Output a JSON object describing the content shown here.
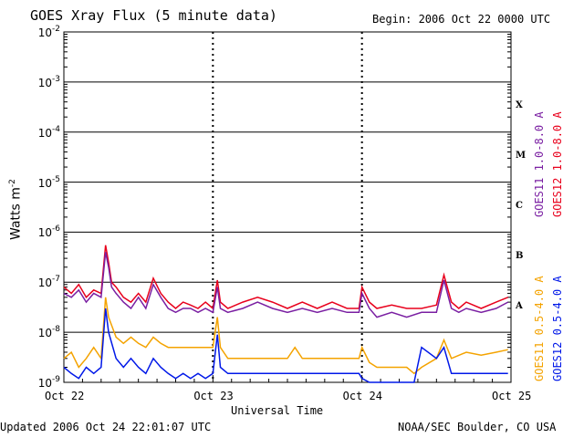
{
  "header": {
    "title": "GOES Xray Flux (5 minute data)",
    "begin": "Begin:  2006 Oct 22 0000 UTC"
  },
  "footer": {
    "updated": "Updated 2006 Oct 24 22:01:07 UTC",
    "credit": "NOAA/SEC Boulder, CO USA"
  },
  "chart_data": {
    "type": "line",
    "title": "GOES Xray Flux (5 minute data)",
    "xlabel": "Universal Time",
    "ylabel": "Watts m-2",
    "ylabel_main": "Watts m",
    "ylabel_sup": "-2",
    "y_scale": "log",
    "ylim": [
      1e-09,
      0.01
    ],
    "x_range_days": [
      "Oct 22",
      "Oct 25"
    ],
    "x_ticks": [
      "Oct 22",
      "Oct 23",
      "Oct 24",
      "Oct 25"
    ],
    "y_ticks": [
      {
        "base": "10",
        "exp": "-2"
      },
      {
        "base": "10",
        "exp": "-3"
      },
      {
        "base": "10",
        "exp": "-4"
      },
      {
        "base": "10",
        "exp": "-5"
      },
      {
        "base": "10",
        "exp": "-6"
      },
      {
        "base": "10",
        "exp": "-7"
      },
      {
        "base": "10",
        "exp": "-8"
      },
      {
        "base": "10",
        "exp": "-9"
      }
    ],
    "flare_classes": [
      "X",
      "M",
      "C",
      "B",
      "A"
    ],
    "grid": true,
    "legend_right": [
      {
        "name": "GOES11 1.0-8.0 A",
        "color": "#7a1fa2"
      },
      {
        "name": "GOES12 1.0-8.0 A",
        "color": "#e8001c"
      },
      {
        "name": "GOES11 0.5-4.0 A",
        "color": "#f4a300"
      },
      {
        "name": "GOES12 0.5-4.0 A",
        "color": "#0018e8"
      }
    ],
    "series": [
      {
        "name": "GOES12 1.0-8.0 A",
        "color": "#e8001c",
        "x": [
          0,
          0.05,
          0.1,
          0.15,
          0.2,
          0.25,
          0.28,
          0.3,
          0.32,
          0.35,
          0.4,
          0.45,
          0.5,
          0.55,
          0.6,
          0.65,
          0.7,
          0.75,
          0.8,
          0.85,
          0.9,
          0.95,
          1.0,
          1.03,
          1.05,
          1.1,
          1.2,
          1.3,
          1.4,
          1.5,
          1.6,
          1.7,
          1.8,
          1.9,
          1.98,
          2.0,
          2.05,
          2.1,
          2.2,
          2.3,
          2.4,
          2.5,
          2.55,
          2.6,
          2.65,
          2.7,
          2.8,
          2.9,
          2.98
        ],
        "values": [
          8e-08,
          6e-08,
          9e-08,
          5e-08,
          7e-08,
          6e-08,
          5.5e-07,
          2.5e-07,
          1e-07,
          8e-08,
          5e-08,
          4e-08,
          6e-08,
          4e-08,
          1.2e-07,
          6e-08,
          4e-08,
          3e-08,
          4e-08,
          3.5e-08,
          3e-08,
          4e-08,
          3e-08,
          1.1e-07,
          4e-08,
          3e-08,
          4e-08,
          5e-08,
          4e-08,
          3e-08,
          4e-08,
          3e-08,
          4e-08,
          3e-08,
          3e-08,
          8e-08,
          4e-08,
          3e-08,
          3.5e-08,
          3e-08,
          3e-08,
          3.5e-08,
          1.4e-07,
          4e-08,
          3e-08,
          4e-08,
          3e-08,
          4e-08,
          5e-08
        ]
      },
      {
        "name": "GOES11 1.0-8.0 A",
        "color": "#7a1fa2",
        "x": [
          0,
          0.05,
          0.1,
          0.15,
          0.2,
          0.25,
          0.28,
          0.3,
          0.32,
          0.35,
          0.4,
          0.45,
          0.5,
          0.55,
          0.6,
          0.65,
          0.7,
          0.75,
          0.8,
          0.85,
          0.9,
          0.95,
          1.0,
          1.03,
          1.05,
          1.1,
          1.2,
          1.3,
          1.4,
          1.5,
          1.6,
          1.7,
          1.8,
          1.9,
          1.98,
          2.0,
          2.05,
          2.1,
          2.2,
          2.3,
          2.4,
          2.5,
          2.55,
          2.6,
          2.65,
          2.7,
          2.8,
          2.9,
          2.98
        ],
        "values": [
          6e-08,
          5e-08,
          7e-08,
          4e-08,
          6e-08,
          5e-08,
          4e-07,
          2e-07,
          8e-08,
          6e-08,
          4e-08,
          3e-08,
          5e-08,
          3e-08,
          9e-08,
          5e-08,
          3e-08,
          2.5e-08,
          3e-08,
          3e-08,
          2.5e-08,
          3e-08,
          2.5e-08,
          8e-08,
          3e-08,
          2.5e-08,
          3e-08,
          4e-08,
          3e-08,
          2.5e-08,
          3e-08,
          2.5e-08,
          3e-08,
          2.5e-08,
          2.5e-08,
          6e-08,
          3e-08,
          2e-08,
          2.5e-08,
          2e-08,
          2.5e-08,
          2.5e-08,
          1.1e-07,
          3e-08,
          2.5e-08,
          3e-08,
          2.5e-08,
          3e-08,
          4e-08
        ]
      },
      {
        "name": "GOES11 0.5-4.0 A",
        "color": "#f4a300",
        "x": [
          0,
          0.05,
          0.1,
          0.15,
          0.2,
          0.25,
          0.28,
          0.3,
          0.35,
          0.4,
          0.45,
          0.5,
          0.55,
          0.6,
          0.65,
          0.7,
          0.75,
          0.8,
          0.85,
          0.9,
          0.95,
          1.0,
          1.03,
          1.05,
          1.1,
          1.2,
          1.3,
          1.4,
          1.5,
          1.55,
          1.6,
          1.7,
          1.8,
          1.9,
          1.98,
          2.0,
          2.05,
          2.1,
          2.2,
          2.3,
          2.35,
          2.4,
          2.5,
          2.55,
          2.6,
          2.7,
          2.8,
          2.9,
          2.98
        ],
        "values": [
          3e-09,
          4e-09,
          2e-09,
          3e-09,
          5e-09,
          3e-09,
          5e-08,
          2e-08,
          8e-09,
          6e-09,
          8e-09,
          6e-09,
          5e-09,
          8e-09,
          6e-09,
          5e-09,
          5e-09,
          5e-09,
          5e-09,
          5e-09,
          5e-09,
          5e-09,
          2e-08,
          5e-09,
          3e-09,
          3e-09,
          3e-09,
          3e-09,
          3e-09,
          5e-09,
          3e-09,
          3e-09,
          3e-09,
          3e-09,
          3e-09,
          5e-09,
          2.5e-09,
          2e-09,
          2e-09,
          2e-09,
          1.5e-09,
          2e-09,
          3e-09,
          7e-09,
          3e-09,
          4e-09,
          3.5e-09,
          4e-09,
          4.5e-09
        ]
      },
      {
        "name": "GOES12 0.5-4.0 A",
        "color": "#0018e8",
        "x": [
          0,
          0.05,
          0.1,
          0.15,
          0.2,
          0.25,
          0.28,
          0.3,
          0.35,
          0.4,
          0.45,
          0.5,
          0.55,
          0.6,
          0.65,
          0.7,
          0.75,
          0.8,
          0.85,
          0.9,
          0.95,
          1.0,
          1.03,
          1.05,
          1.1,
          1.2,
          1.3,
          1.4,
          1.5,
          1.6,
          1.7,
          1.8,
          1.9,
          1.98,
          2.0,
          2.05,
          2.1,
          2.2,
          2.3,
          2.35,
          2.4,
          2.5,
          2.55,
          2.6,
          2.7,
          2.8,
          2.9,
          2.98
        ],
        "values": [
          2e-09,
          1.5e-09,
          1.2e-09,
          2e-09,
          1.5e-09,
          2e-09,
          3e-08,
          1e-08,
          3e-09,
          2e-09,
          3e-09,
          2e-09,
          1.5e-09,
          3e-09,
          2e-09,
          1.5e-09,
          1.2e-09,
          1.5e-09,
          1.2e-09,
          1.5e-09,
          1.2e-09,
          1.5e-09,
          9e-09,
          2e-09,
          1.5e-09,
          1.5e-09,
          1.5e-09,
          1.5e-09,
          1.5e-09,
          1.5e-09,
          1.5e-09,
          1.5e-09,
          1.5e-09,
          1.5e-09,
          1.2e-09,
          1e-09,
          1e-09,
          1e-09,
          1e-09,
          1e-09,
          5e-09,
          3e-09,
          5e-09,
          1.5e-09,
          1.5e-09,
          1.5e-09,
          1.5e-09,
          1.5e-09
        ]
      }
    ]
  }
}
